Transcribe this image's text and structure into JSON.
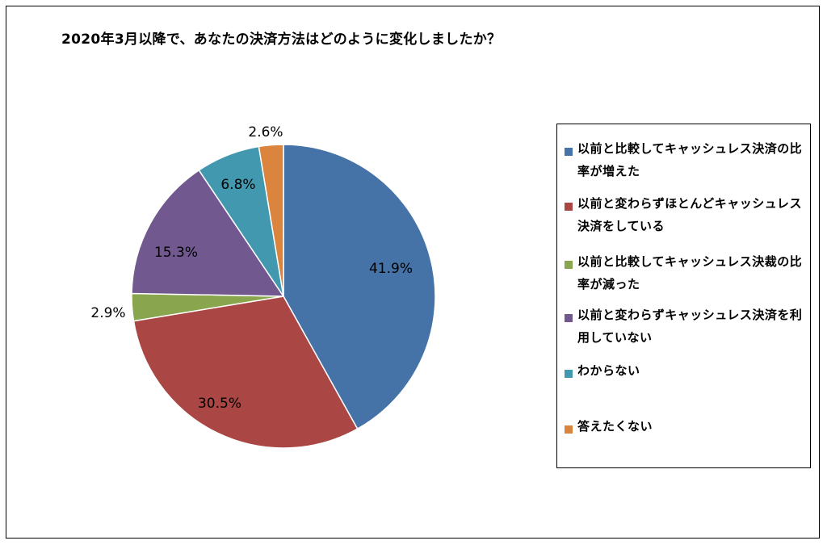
{
  "chart_data": {
    "type": "pie",
    "title": "2020年3月以降で、あなたの決済方法はどのように変化しましたか？",
    "categories": [
      "以前と比較してキャッシュレス決済の比率が増えた",
      "以前と変わらずほとんどキャッシュレス決済をしている",
      "以前と比較してキャッシュレス決裁の比率が減った",
      "以前と変わらずキャッシュレス決済を利用していない",
      "わからない",
      "答えたくない"
    ],
    "values": [
      41.9,
      30.5,
      2.9,
      15.3,
      6.8,
      2.6
    ],
    "value_labels": [
      "41.9%",
      "30.5%",
      "2.9%",
      "15.3%",
      "6.8%",
      "2.6%"
    ],
    "colors": [
      "#4572A7",
      "#AA4643",
      "#89A54E",
      "#71588F",
      "#4198AF",
      "#DB843D"
    ],
    "start_angle": "12 o'clock",
    "direction": "clockwise",
    "legend_position": "right"
  }
}
